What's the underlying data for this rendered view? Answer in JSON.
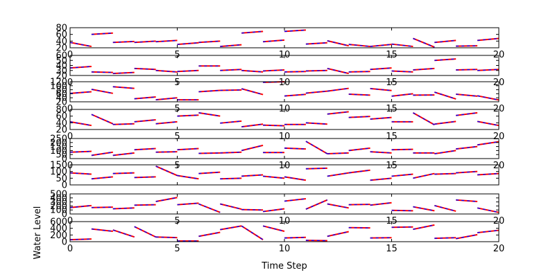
{
  "chart_data": {
    "type": "line",
    "title": "",
    "xlabel": "Time Step",
    "ylabel": "Water Level",
    "xlim": [
      0,
      20
    ],
    "x_ticks": [
      0,
      5,
      10,
      15,
      20
    ],
    "grid": false,
    "style": {
      "line_color": "#ff0000",
      "marker_color": "#0000ff",
      "line_style": "dashed"
    },
    "panels": [
      {
        "ylim": [
          20,
          80
        ],
        "y_ticks": [
          20,
          40,
          60,
          80
        ],
        "x_tick_labels_shown": true,
        "segments": [
          [
            36,
            24
          ],
          [
            60,
            64
          ],
          [
            36,
            39
          ],
          [
            36,
            40
          ],
          [
            38,
            42
          ],
          [
            30,
            35
          ],
          [
            36,
            40
          ],
          [
            24,
            29
          ],
          [
            64,
            69
          ],
          [
            38,
            43
          ],
          [
            69,
            73
          ],
          [
            31,
            35
          ],
          [
            41,
            26
          ],
          [
            30,
            24
          ],
          [
            24,
            30
          ],
          [
            31,
            24
          ],
          [
            48,
            22
          ],
          [
            36,
            42
          ],
          [
            25,
            26
          ],
          [
            42,
            48
          ]
        ]
      },
      {
        "ylim": [
          20,
          60
        ],
        "y_ticks": [
          20,
          30,
          40,
          50,
          60
        ],
        "x_tick_labels_shown": true,
        "segments": [
          [
            35,
            38
          ],
          [
            27,
            26
          ],
          [
            24,
            26
          ],
          [
            34,
            32
          ],
          [
            30,
            27
          ],
          [
            28,
            30
          ],
          [
            39,
            39
          ],
          [
            30,
            32
          ],
          [
            30,
            27
          ],
          [
            29,
            31
          ],
          [
            27,
            28
          ],
          [
            29,
            30
          ],
          [
            34,
            24
          ],
          [
            27,
            28
          ],
          [
            32,
            35
          ],
          [
            29,
            27
          ],
          [
            31,
            34
          ],
          [
            50,
            53
          ],
          [
            31,
            32
          ],
          [
            30,
            32
          ]
        ]
      },
      {
        "ylim": [
          20,
          120
        ],
        "y_ticks": [
          20,
          40,
          60,
          80,
          100,
          120
        ],
        "x_tick_labels_shown": true,
        "segments": [
          [
            62,
            70
          ],
          [
            82,
            62
          ],
          [
            95,
            87
          ],
          [
            35,
            44
          ],
          [
            30,
            40
          ],
          [
            30,
            30
          ],
          [
            70,
            77
          ],
          [
            77,
            79
          ],
          [
            85,
            56
          ],
          [
            117,
            120
          ],
          [
            49,
            57
          ],
          [
            63,
            73
          ],
          [
            73,
            87
          ],
          [
            58,
            53
          ],
          [
            86,
            76
          ],
          [
            48,
            60
          ],
          [
            53,
            54
          ],
          [
            68,
            34
          ],
          [
            58,
            48
          ],
          [
            50,
            29
          ]
        ]
      },
      {
        "ylim": [
          20,
          80
        ],
        "y_ticks": [
          20,
          40,
          60,
          80
        ],
        "x_tick_labels_shown": true,
        "segments": [
          [
            43,
            32
          ],
          [
            65,
            37
          ],
          [
            35,
            37
          ],
          [
            43,
            49
          ],
          [
            37,
            43
          ],
          [
            60,
            63
          ],
          [
            70,
            60
          ],
          [
            39,
            45
          ],
          [
            28,
            36
          ],
          [
            33,
            31
          ],
          [
            35,
            35
          ],
          [
            40,
            36
          ],
          [
            66,
            73
          ],
          [
            56,
            59
          ],
          [
            51,
            56
          ],
          [
            43,
            43
          ],
          [
            70,
            34
          ],
          [
            36,
            44
          ],
          [
            62,
            70
          ],
          [
            44,
            32
          ]
        ]
      },
      {
        "ylim": [
          0,
          250
        ],
        "y_ticks": [
          0,
          50,
          100,
          150,
          200,
          250
        ],
        "x_tick_labels_shown": true,
        "segments": [
          [
            80,
            90
          ],
          [
            40,
            80
          ],
          [
            40,
            70
          ],
          [
            110,
            125
          ],
          [
            80,
            85
          ],
          [
            110,
            125
          ],
          [
            65,
            70
          ],
          [
            70,
            80
          ],
          [
            100,
            165
          ],
          [
            75,
            75
          ],
          [
            130,
            120
          ],
          [
            215,
            60
          ],
          [
            60,
            70
          ],
          [
            100,
            130
          ],
          [
            85,
            70
          ],
          [
            110,
            115
          ],
          [
            70,
            70
          ],
          [
            60,
            100
          ],
          [
            120,
            150
          ],
          [
            170,
            210
          ]
        ]
      },
      {
        "ylim": [
          0,
          150
        ],
        "y_ticks": [
          0,
          50,
          100,
          150
        ],
        "x_tick_labels_shown": false,
        "segments": [
          [
            90,
            80
          ],
          [
            45,
            60
          ],
          [
            85,
            90
          ],
          [
            55,
            60
          ],
          [
            140,
            70
          ],
          [
            70,
            45
          ],
          [
            85,
            95
          ],
          [
            45,
            50
          ],
          [
            65,
            75
          ],
          [
            65,
            50
          ],
          [
            60,
            35
          ],
          [
            120,
            125
          ],
          [
            65,
            90
          ],
          [
            90,
            110
          ],
          [
            35,
            50
          ],
          [
            65,
            80
          ],
          [
            50,
            85
          ],
          [
            80,
            85
          ],
          [
            90,
            100
          ],
          [
            75,
            85
          ]
        ]
      },
      {
        "ylim": [
          0,
          500
        ],
        "y_ticks": [
          0,
          100,
          200,
          300,
          400,
          500
        ],
        "x_tick_labels_shown": true,
        "segments": [
          [
            160,
            210
          ],
          [
            160,
            170
          ],
          [
            130,
            150
          ],
          [
            220,
            230
          ],
          [
            310,
            410
          ],
          [
            230,
            270
          ],
          [
            250,
            40
          ],
          [
            250,
            120
          ],
          [
            110,
            100
          ],
          [
            60,
            130
          ],
          [
            320,
            380
          ],
          [
            120,
            350
          ],
          [
            250,
            150
          ],
          [
            230,
            240
          ],
          [
            220,
            280
          ],
          [
            90,
            80
          ],
          [
            180,
            80
          ],
          [
            210,
            70
          ],
          [
            350,
            310
          ],
          [
            150,
            40
          ]
        ]
      },
      {
        "ylim": [
          0,
          600
        ],
        "y_ticks": [
          0,
          200,
          400,
          600
        ],
        "x_tick_labels_shown": true,
        "segments": [
          [
            60,
            80
          ],
          [
            380,
            310
          ],
          [
            350,
            140
          ],
          [
            450,
            140
          ],
          [
            140,
            120
          ],
          [
            20,
            20
          ],
          [
            160,
            280
          ],
          [
            360,
            470
          ],
          [
            470,
            60
          ],
          [
            470,
            310
          ],
          [
            110,
            130
          ],
          [
            40,
            30
          ],
          [
            160,
            300
          ],
          [
            420,
            410
          ],
          [
            110,
            120
          ],
          [
            430,
            440
          ],
          [
            370,
            500
          ],
          [
            100,
            120
          ],
          [
            90,
            210
          ],
          [
            270,
            340
          ]
        ]
      }
    ]
  }
}
